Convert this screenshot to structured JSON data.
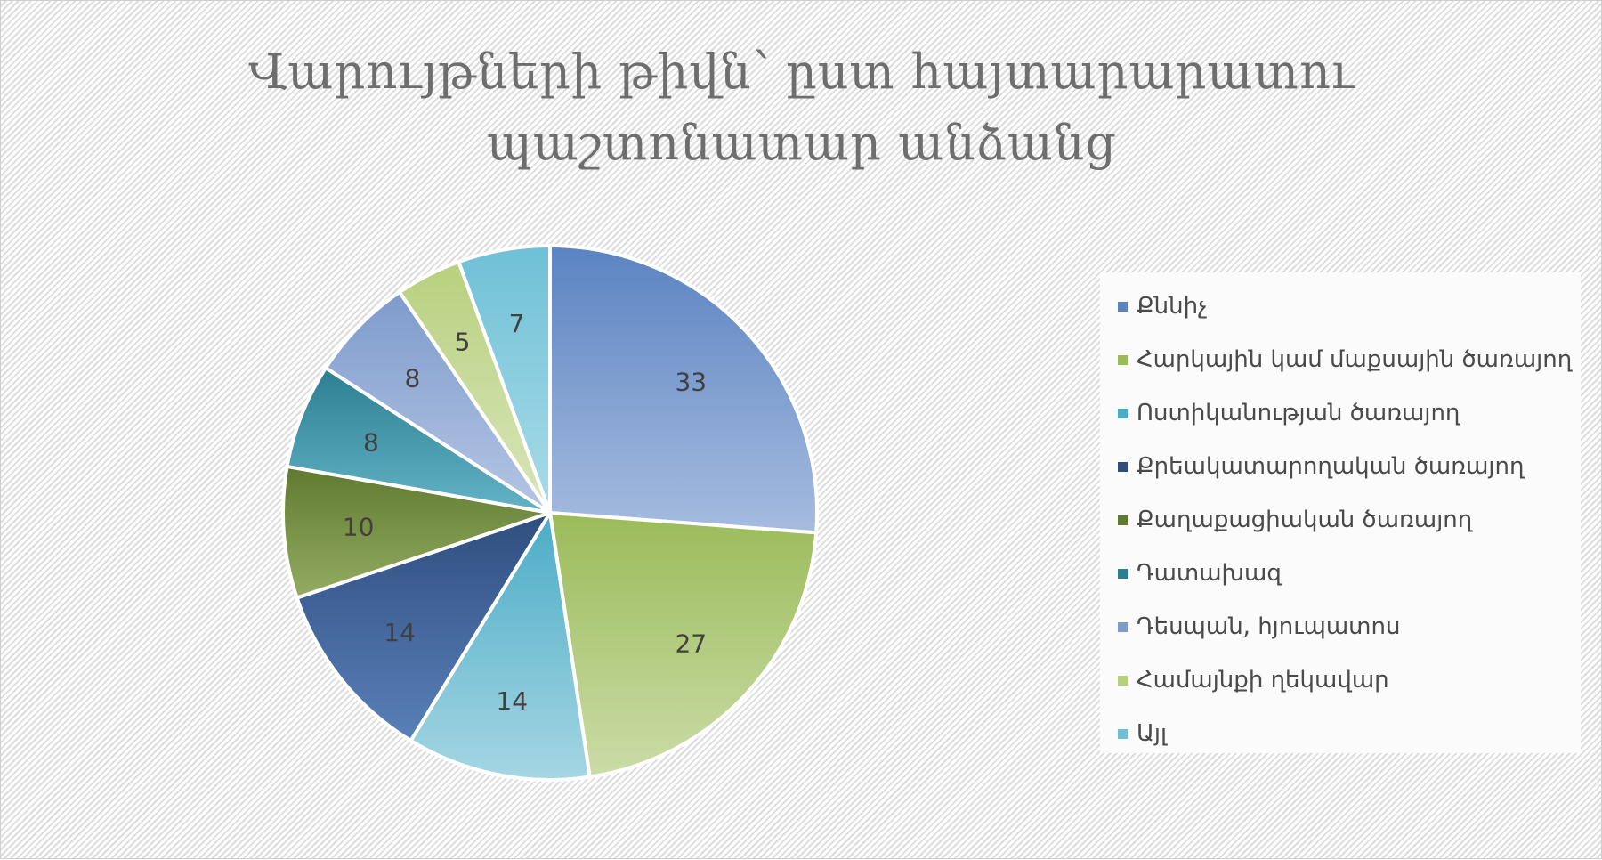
{
  "chart_data": {
    "type": "pie",
    "title_lines": [
      "Վարույթների թիվն՝ ըստ հայտարարատու",
      "պաշտոնատար անձանց"
    ],
    "categories": [
      "Քննիչ",
      "Հարկային կամ մաքսային ծառայող",
      "Ոստիկանության ծառայող",
      "Քրեակատարողական ծառայող",
      "Քաղաքացիական ծառայող",
      "Դատախազ",
      "Դեսպան, հյուպատոս",
      "Համայնքի ղեկավար",
      "Այլ"
    ],
    "values": [
      33,
      27,
      14,
      14,
      10,
      8,
      8,
      5,
      7
    ],
    "colors": [
      "#5b83c2",
      "#9bbb59",
      "#4bacc6",
      "#2f4e7f",
      "#5f7a30",
      "#2c7f91",
      "#7f9bcc",
      "#b8d07e",
      "#6fc0d6"
    ],
    "light_colors": [
      "#a6bcdf",
      "#cbdca7",
      "#a5d6e3",
      "#5a80b9",
      "#94ac62",
      "#64b3c6",
      "#b4c6e4",
      "#d9e6bb",
      "#a9dce9"
    ],
    "legend_position": "right",
    "start_angle": "12 o'clock, clockwise"
  }
}
